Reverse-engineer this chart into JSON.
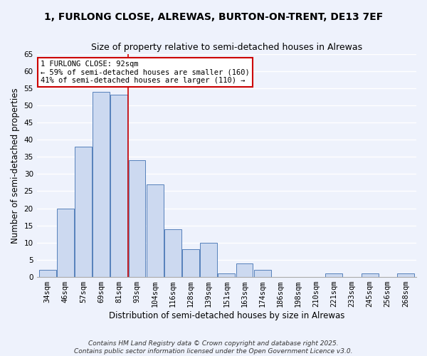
{
  "title_line1": "1, FURLONG CLOSE, ALREWAS, BURTON-ON-TRENT, DE13 7EF",
  "title_line2": "Size of property relative to semi-detached houses in Alrewas",
  "xlabel": "Distribution of semi-detached houses by size in Alrewas",
  "ylabel": "Number of semi-detached properties",
  "bar_labels": [
    "34sqm",
    "46sqm",
    "57sqm",
    "69sqm",
    "81sqm",
    "93sqm",
    "104sqm",
    "116sqm",
    "128sqm",
    "139sqm",
    "151sqm",
    "163sqm",
    "174sqm",
    "186sqm",
    "198sqm",
    "210sqm",
    "221sqm",
    "233sqm",
    "245sqm",
    "256sqm",
    "268sqm"
  ],
  "bar_values": [
    2,
    20,
    38,
    54,
    53,
    34,
    27,
    14,
    8,
    10,
    1,
    4,
    2,
    0,
    0,
    0,
    1,
    0,
    1,
    0,
    1
  ],
  "bar_color": "#ccd9f0",
  "bar_edge_color": "#5580bb",
  "highlight_bar_index": 5,
  "highlight_line_color": "#cc0000",
  "annotation_title": "1 FURLONG CLOSE: 92sqm",
  "annotation_line2": "← 59% of semi-detached houses are smaller (160)",
  "annotation_line3": "41% of semi-detached houses are larger (110) →",
  "annotation_box_color": "#ffffff",
  "annotation_box_edge": "#cc0000",
  "ylim": [
    0,
    65
  ],
  "yticks": [
    0,
    5,
    10,
    15,
    20,
    25,
    30,
    35,
    40,
    45,
    50,
    55,
    60,
    65
  ],
  "footer_line1": "Contains HM Land Registry data © Crown copyright and database right 2025.",
  "footer_line2": "Contains public sector information licensed under the Open Government Licence v3.0.",
  "bg_color": "#eef2fc",
  "grid_color": "#ffffff",
  "title_fontsize": 10,
  "subtitle_fontsize": 9,
  "axis_label_fontsize": 8.5,
  "tick_fontsize": 7.5,
  "annotation_fontsize": 7.5,
  "footer_fontsize": 6.5
}
